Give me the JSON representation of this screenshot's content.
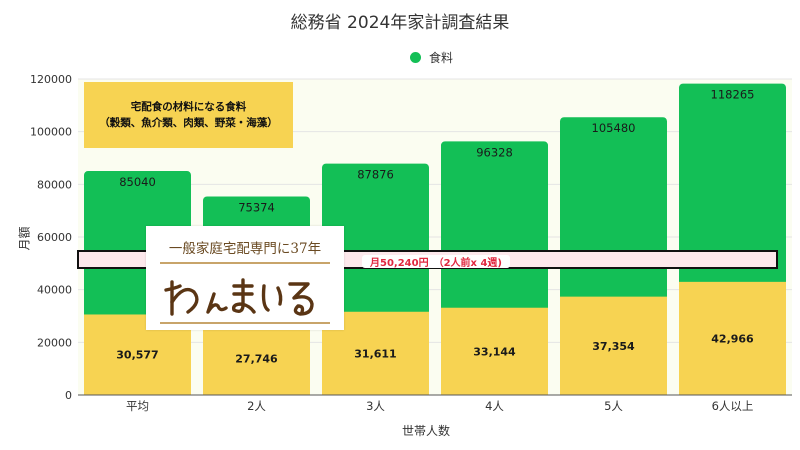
{
  "title": "総務省 2024年家計調査結果",
  "legend": {
    "label": "食料",
    "color": "#13bf56"
  },
  "note": {
    "line1": "宅配食の材料になる食料",
    "line2": "（穀類、魚介類、肉類、野菜・海藻）"
  },
  "highlight": {
    "label": "月50,240円　（2人前x 4週)"
  },
  "logo": {
    "tagline": "一般家庭宅配専門に37年",
    "wordmark": "わんまいる"
  },
  "colors": {
    "total_bar": "#13bf56",
    "ingredient_bar": "#f7d352",
    "highlight_text": "#e0283f"
  },
  "chart_data": {
    "type": "bar",
    "title": "総務省 2024年家計調査結果",
    "xlabel": "世帯人数",
    "ylabel": "月額",
    "categories": [
      "平均",
      "2人",
      "3人",
      "4人",
      "5人",
      "6人以上"
    ],
    "ylim": [
      0,
      120000
    ],
    "yticks": [
      0,
      20000,
      40000,
      60000,
      80000,
      100000,
      120000
    ],
    "series": [
      {
        "name": "食料",
        "values": [
          85040,
          75374,
          87876,
          96328,
          105480,
          118265
        ],
        "labels": [
          "85040",
          "75374",
          "87876",
          "96328",
          "105480",
          "118265"
        ]
      },
      {
        "values": [
          30577,
          27746,
          31611,
          33144,
          37354,
          42966
        ],
        "labels": [
          "30,577",
          "27,746",
          "31,611",
          "33,144",
          "37,354",
          "42,966"
        ]
      }
    ],
    "reference_line": {
      "value": 50240
    },
    "grid": true,
    "legend_position": "top-center"
  }
}
